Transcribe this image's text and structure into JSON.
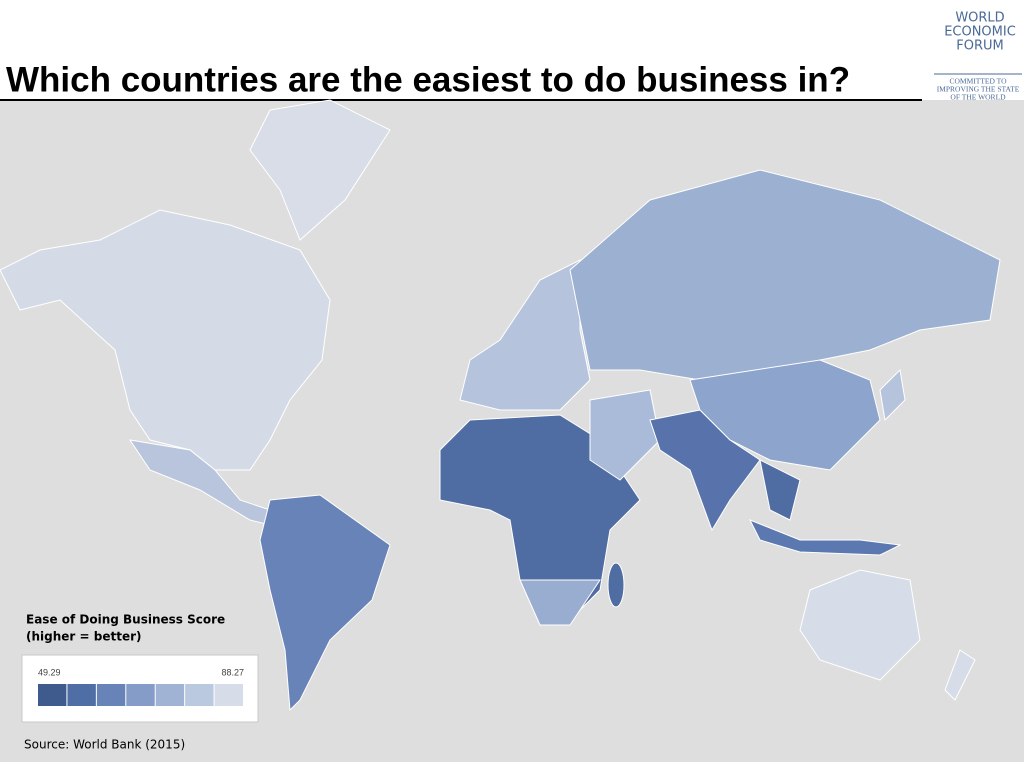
{
  "header": {
    "title": "Which countries are the easiest to do business in?"
  },
  "logo": {
    "lines": [
      "WORLD",
      "ECONOMIC",
      "FORUM"
    ],
    "tagline": [
      "COMMITTED TO",
      "IMPROVING THE STATE",
      "OF THE WORLD"
    ]
  },
  "legend": {
    "title": "Ease of Doing Business Score",
    "subtitle": "(higher = better)",
    "min": 49.29,
    "max": 88.27,
    "colors": [
      "#3f5a8c",
      "#506ea6",
      "#6783b8",
      "#849cc7",
      "#a1b3d4",
      "#bac8e0",
      "#d6dde9"
    ]
  },
  "source": "Source: World Bank (2015)"
}
